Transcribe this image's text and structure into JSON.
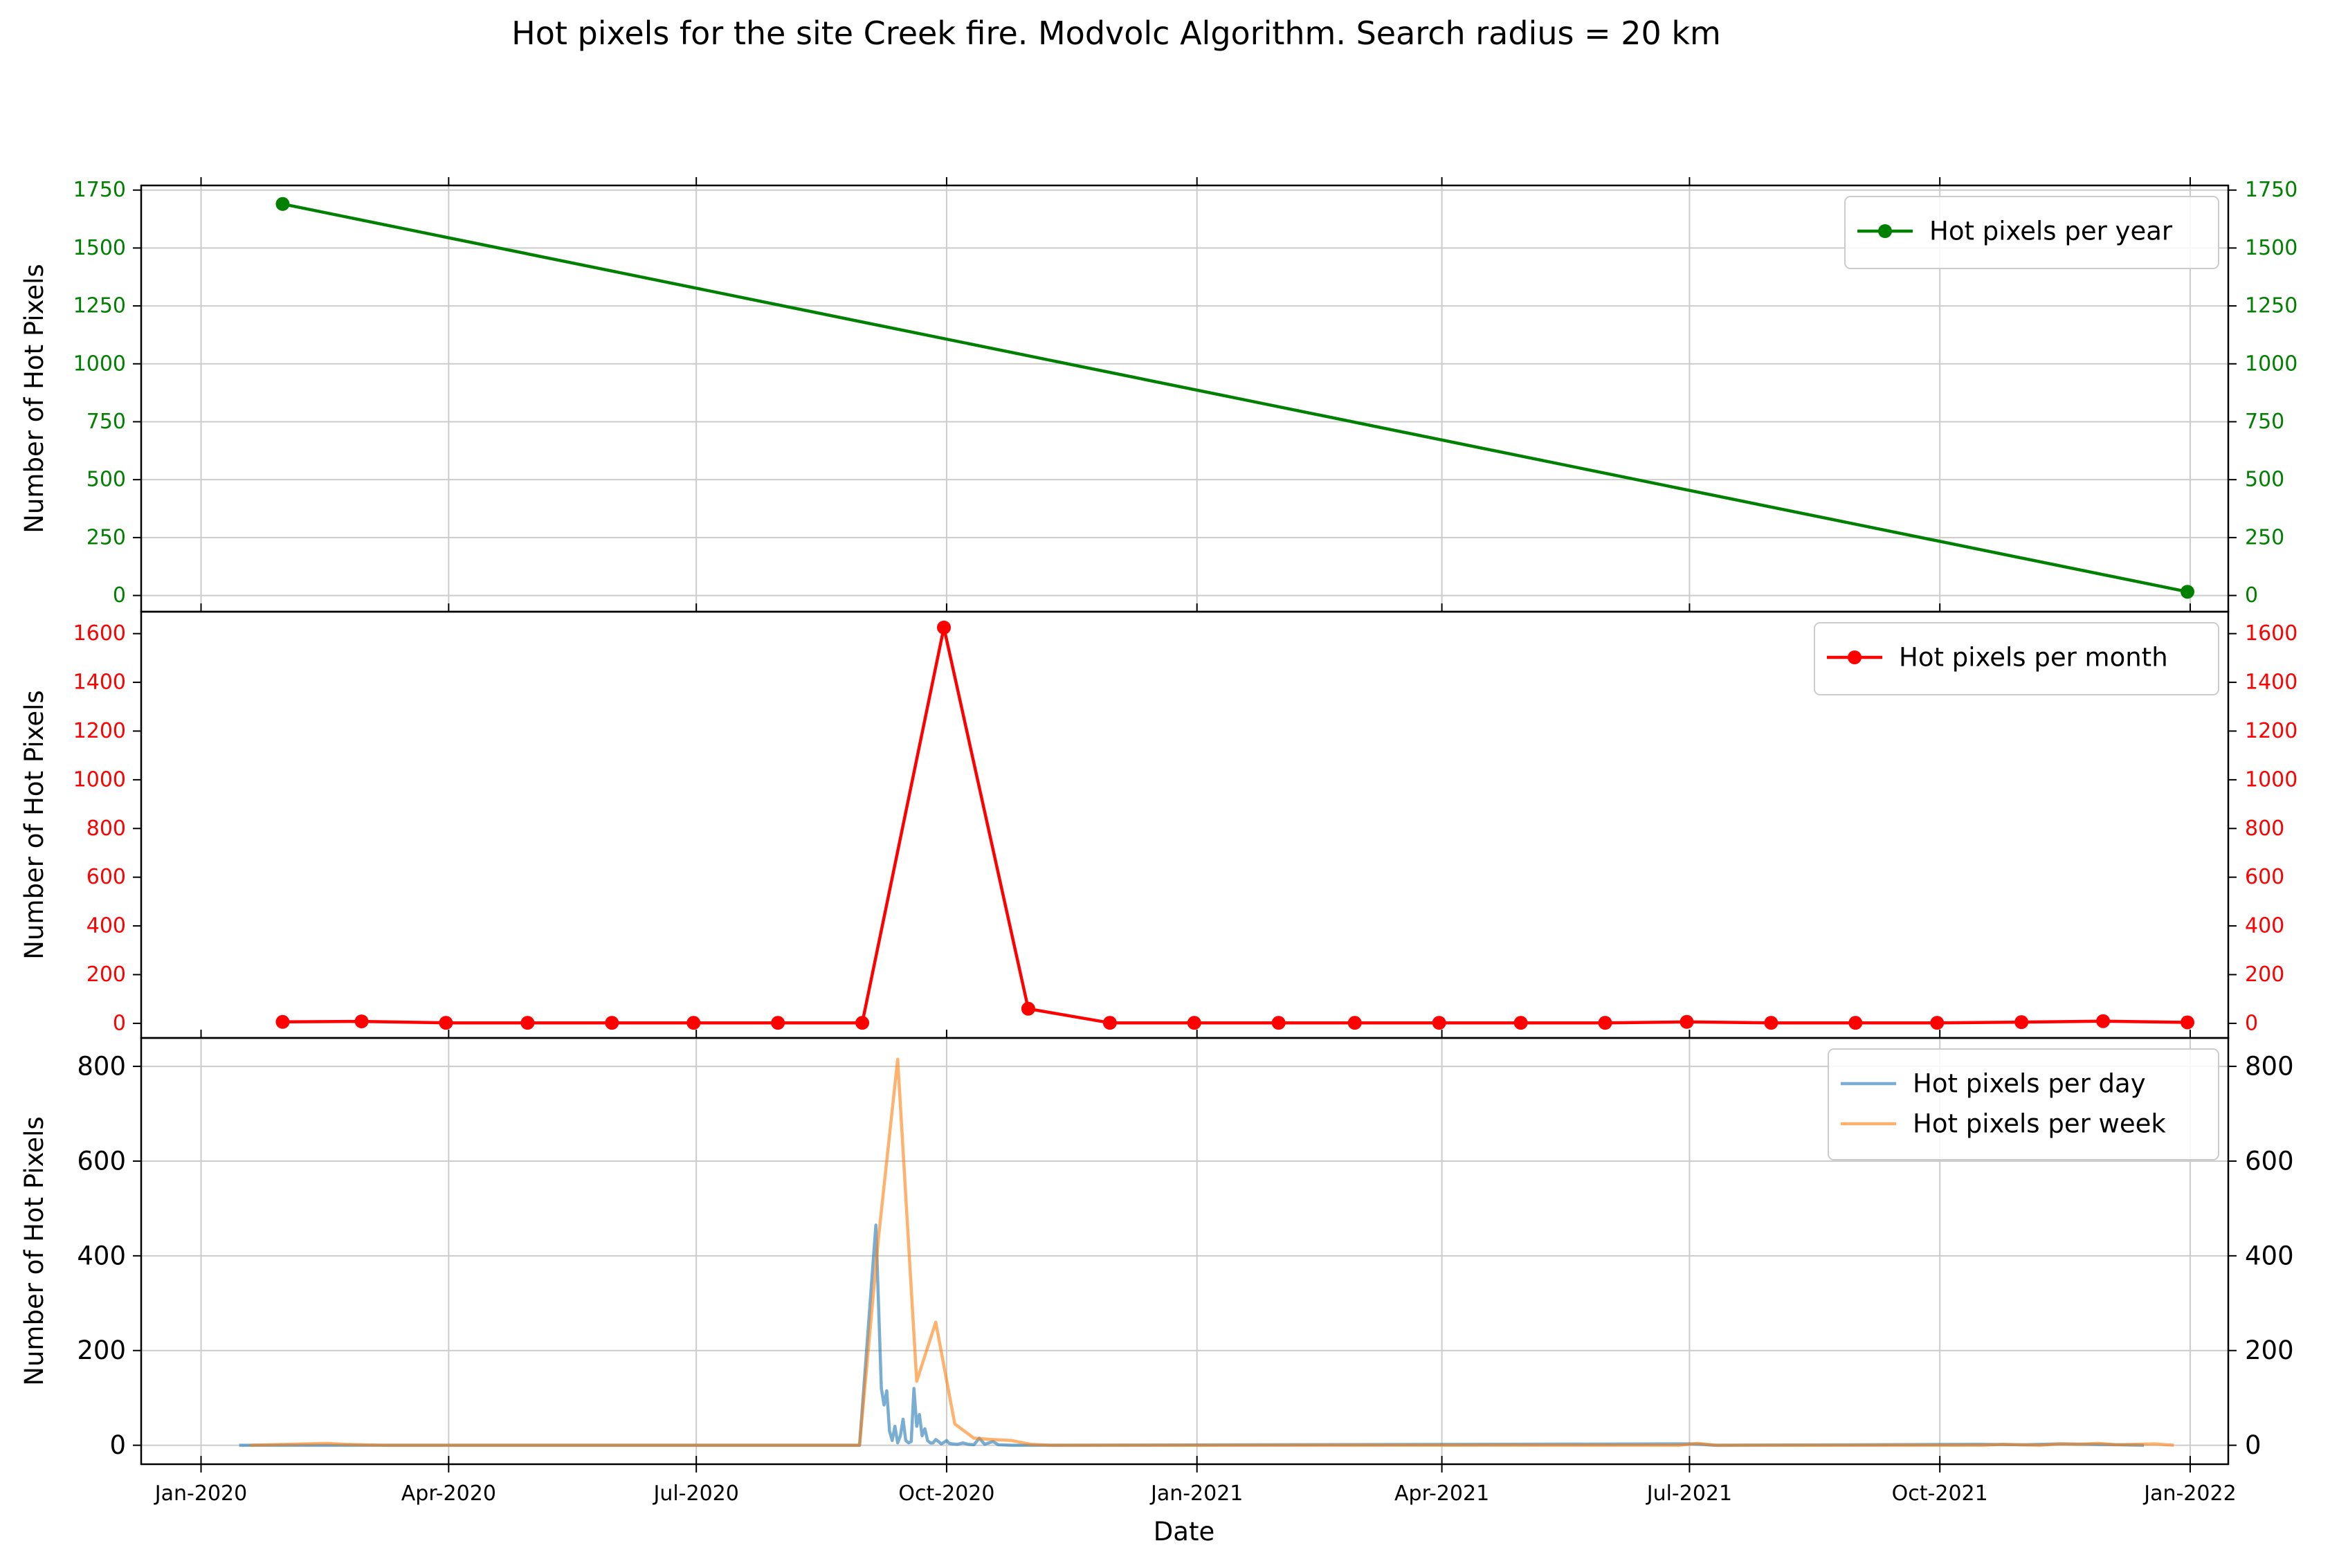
{
  "title": "Hot pixels for the site Creek fire. Modvolc Algorithm. Search radius = 20 km",
  "xlabel": "Date",
  "colors": {
    "year": "#008000",
    "month": "#ff0000",
    "day": "#1f77b4",
    "week": "#ff7f0e",
    "grid": "#cccccc",
    "axis": "#000000"
  },
  "x_axis": {
    "range": [
      "2019-12-10",
      "2022-01-15"
    ],
    "ticks": [
      {
        "date": "2020-01-01",
        "label": "Jan-2020"
      },
      {
        "date": "2020-04-01",
        "label": "Apr-2020"
      },
      {
        "date": "2020-07-01",
        "label": "Jul-2020"
      },
      {
        "date": "2020-10-01",
        "label": "Oct-2020"
      },
      {
        "date": "2021-01-01",
        "label": "Jan-2021"
      },
      {
        "date": "2021-04-01",
        "label": "Apr-2021"
      },
      {
        "date": "2021-07-01",
        "label": "Jul-2021"
      },
      {
        "date": "2021-10-01",
        "label": "Oct-2021"
      },
      {
        "date": "2022-01-01",
        "label": "Jan-2022"
      }
    ]
  },
  "chart_data": [
    {
      "type": "line",
      "ylabel": "Number of Hot Pixels",
      "ylim": [
        -70,
        1770
      ],
      "yticks": [
        0,
        250,
        500,
        750,
        1000,
        1250,
        1500,
        1750
      ],
      "grid": true,
      "legend": "top-right",
      "series": [
        {
          "name": "Hot pixels per year",
          "color": "#008000",
          "marker": true,
          "x": [
            "2020-01-31",
            "2021-12-31"
          ],
          "y": [
            1690,
            16
          ]
        }
      ]
    },
    {
      "type": "line",
      "ylabel": "Number of Hot Pixels",
      "ylim": [
        -60,
        1690
      ],
      "yticks": [
        0,
        200,
        400,
        600,
        800,
        1000,
        1200,
        1400,
        1600
      ],
      "grid": false,
      "legend": "top-right",
      "series": [
        {
          "name": "Hot pixels per month",
          "color": "#ff0000",
          "marker": true,
          "x": [
            "2020-01-31",
            "2020-02-29",
            "2020-03-31",
            "2020-04-30",
            "2020-05-31",
            "2020-06-30",
            "2020-07-31",
            "2020-08-31",
            "2020-09-30",
            "2020-10-31",
            "2020-11-30",
            "2020-12-31",
            "2021-01-31",
            "2021-02-28",
            "2021-03-31",
            "2021-04-30",
            "2021-05-31",
            "2021-06-30",
            "2021-07-31",
            "2021-08-31",
            "2021-09-30",
            "2021-10-31",
            "2021-11-30",
            "2021-12-31"
          ],
          "y": [
            6,
            8,
            2,
            2,
            2,
            2,
            2,
            2,
            1625,
            60,
            2,
            2,
            2,
            2,
            2,
            2,
            2,
            6,
            2,
            2,
            2,
            5,
            9,
            4
          ]
        }
      ]
    },
    {
      "type": "line",
      "ylabel": "Number of Hot Pixels",
      "ylim": [
        -40,
        860
      ],
      "yticks": [
        0,
        200,
        400,
        600,
        800
      ],
      "grid": true,
      "legend": "top-right",
      "series": [
        {
          "name": "Hot pixels per day",
          "color": "#1f77b4",
          "marker": false,
          "x": [
            "2020-01-15",
            "2020-01-25",
            "2020-02-15",
            "2020-03-01",
            "2020-08-20",
            "2020-08-30",
            "2020-09-05",
            "2020-09-07",
            "2020-09-08",
            "2020-09-09",
            "2020-09-10",
            "2020-09-11",
            "2020-09-12",
            "2020-09-13",
            "2020-09-14",
            "2020-09-15",
            "2020-09-16",
            "2020-09-17",
            "2020-09-18",
            "2020-09-19",
            "2020-09-20",
            "2020-09-21",
            "2020-09-22",
            "2020-09-23",
            "2020-09-24",
            "2020-09-25",
            "2020-09-26",
            "2020-09-27",
            "2020-09-28",
            "2020-09-29",
            "2020-09-30",
            "2020-10-01",
            "2020-10-02",
            "2020-10-03",
            "2020-10-05",
            "2020-10-07",
            "2020-10-09",
            "2020-10-11",
            "2020-10-13",
            "2020-10-15",
            "2020-10-18",
            "2020-10-20",
            "2020-10-25",
            "2020-11-10",
            "2021-07-01",
            "2021-07-05",
            "2021-07-10",
            "2021-10-15",
            "2021-11-01",
            "2021-11-15",
            "2021-11-25",
            "2021-12-05",
            "2021-12-15"
          ],
          "y": [
            0,
            0,
            0,
            0,
            0,
            0,
            465,
            120,
            85,
            115,
            30,
            10,
            40,
            5,
            20,
            55,
            10,
            5,
            8,
            120,
            40,
            65,
            20,
            35,
            10,
            5,
            5,
            12,
            8,
            3,
            6,
            10,
            4,
            3,
            2,
            5,
            2,
            1,
            15,
            2,
            8,
            1,
            0,
            0,
            3,
            2,
            0,
            2,
            1,
            3,
            2,
            1,
            0
          ]
        },
        {
          "name": "Hot pixels per week",
          "color": "#ff7f0e",
          "marker": false,
          "x": [
            "2020-01-19",
            "2020-02-16",
            "2020-02-23",
            "2020-03-08",
            "2020-08-23",
            "2020-08-30",
            "2020-09-06",
            "2020-09-13",
            "2020-09-20",
            "2020-09-27",
            "2020-10-04",
            "2020-10-11",
            "2020-10-18",
            "2020-10-25",
            "2020-11-01",
            "2020-11-08",
            "2021-06-27",
            "2021-07-04",
            "2021-07-11",
            "2021-10-17",
            "2021-10-24",
            "2021-11-07",
            "2021-11-14",
            "2021-11-21",
            "2021-11-28",
            "2021-12-05",
            "2021-12-12",
            "2021-12-19",
            "2021-12-26"
          ],
          "y": [
            0,
            4,
            2,
            0,
            0,
            0,
            440,
            815,
            135,
            260,
            45,
            15,
            12,
            10,
            2,
            0,
            0,
            4,
            0,
            0,
            2,
            0,
            3,
            2,
            4,
            1,
            2,
            3,
            0
          ]
        }
      ]
    }
  ]
}
